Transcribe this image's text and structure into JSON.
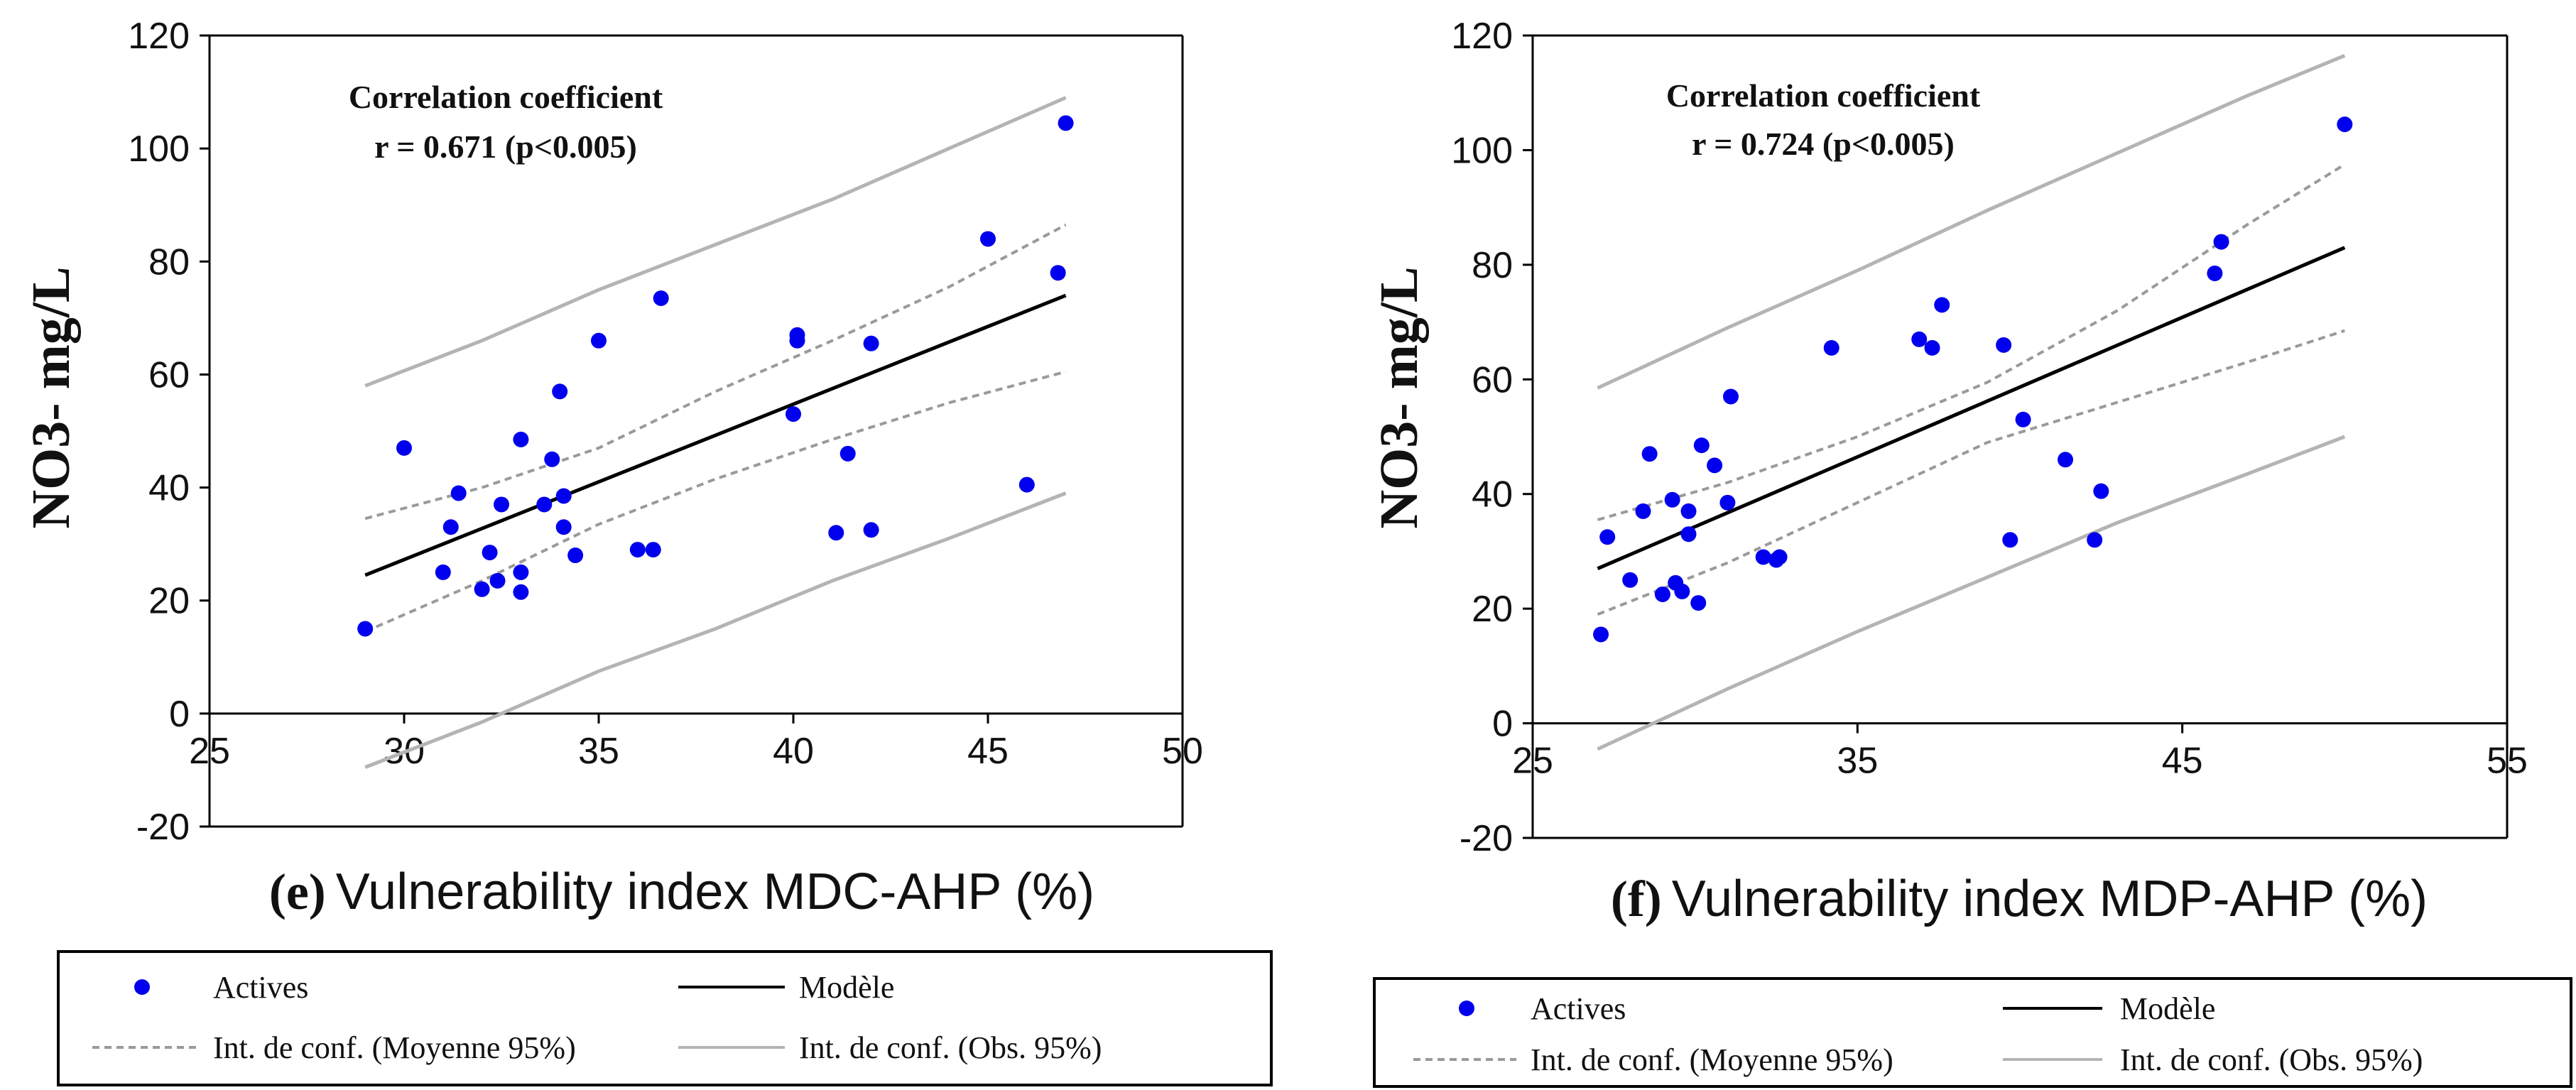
{
  "chart_data": [
    {
      "type": "scatter",
      "panel_label": "(e)",
      "xlabel": "Vulnerability index MDC-AHP (%)",
      "ylabel": "NO3- mg/L",
      "xlim": [
        25,
        50
      ],
      "ylim": [
        -20,
        120
      ],
      "xticks": [
        25,
        30,
        35,
        40,
        45,
        50
      ],
      "yticks": [
        -20,
        0,
        20,
        40,
        60,
        80,
        100,
        120
      ],
      "annotation": [
        "Correlation coefficient",
        "r = 0.671 (p<0.005)"
      ],
      "points": [
        [
          29,
          15
        ],
        [
          30,
          47
        ],
        [
          31,
          25
        ],
        [
          31.2,
          33
        ],
        [
          31.4,
          39
        ],
        [
          32,
          22
        ],
        [
          32.2,
          28.5
        ],
        [
          32.4,
          23.5
        ],
        [
          32.5,
          37
        ],
        [
          33,
          21.5
        ],
        [
          33,
          25
        ],
        [
          33,
          48.5
        ],
        [
          33.6,
          37
        ],
        [
          33.8,
          45
        ],
        [
          34,
          57
        ],
        [
          34.1,
          38.5
        ],
        [
          34.1,
          33
        ],
        [
          34.4,
          28
        ],
        [
          35,
          66
        ],
        [
          36,
          29
        ],
        [
          36.4,
          29
        ],
        [
          36.6,
          73.5
        ],
        [
          40,
          53
        ],
        [
          40.1,
          66
        ],
        [
          40.1,
          67
        ],
        [
          41.1,
          32
        ],
        [
          41.4,
          46
        ],
        [
          42,
          32.5
        ],
        [
          42,
          65.5
        ],
        [
          45,
          84
        ],
        [
          46,
          40.5
        ],
        [
          46.8,
          78
        ],
        [
          47,
          104.5
        ]
      ],
      "model": {
        "x": [
          29,
          47
        ],
        "y": [
          24.5,
          74
        ]
      },
      "conf_mean": {
        "x": [
          29,
          32,
          35,
          38,
          41,
          44,
          47
        ],
        "upper": [
          34.5,
          40,
          47,
          57,
          66,
          75.5,
          86.5
        ],
        "lower": [
          14.5,
          23.5,
          33.5,
          41.5,
          48.5,
          55,
          60.5
        ]
      },
      "conf_obs": {
        "x": [
          29,
          32,
          35,
          38,
          41,
          44,
          47
        ],
        "upper": [
          58,
          66,
          75,
          83,
          91,
          100,
          109
        ],
        "lower": [
          -9.5,
          -1.5,
          7.5,
          15,
          23.5,
          31,
          39
        ]
      },
      "legend": {
        "actives": "Actives",
        "model": "Modèle",
        "conf_mean": "Int. de conf. (Moyenne 95%)",
        "conf_obs": "Int. de conf. (Obs. 95%)"
      }
    },
    {
      "type": "scatter",
      "panel_label": "(f)",
      "xlabel": "Vulnerability index MDP-AHP (%)",
      "ylabel": "NO3- mg/L",
      "xlim": [
        25,
        55
      ],
      "ylim": [
        -20,
        120
      ],
      "xticks": [
        25,
        35,
        45,
        55
      ],
      "yticks": [
        -20,
        0,
        20,
        40,
        60,
        80,
        100,
        120
      ],
      "annotation": [
        "Correlation coefficient",
        "r = 0.724 (p<0.005)"
      ],
      "points": [
        [
          27.1,
          15.5
        ],
        [
          27.3,
          32.5
        ],
        [
          28,
          25
        ],
        [
          28.4,
          37
        ],
        [
          28.6,
          47
        ],
        [
          29,
          22.5
        ],
        [
          29.3,
          39
        ],
        [
          29.4,
          24.5
        ],
        [
          29.6,
          23
        ],
        [
          29.8,
          37
        ],
        [
          29.8,
          33
        ],
        [
          30.1,
          21
        ],
        [
          30.2,
          48.5
        ],
        [
          30.6,
          45
        ],
        [
          31,
          38.5
        ],
        [
          31.1,
          57
        ],
        [
          32.1,
          29
        ],
        [
          32.5,
          28.5
        ],
        [
          32.6,
          29
        ],
        [
          34.2,
          65.5
        ],
        [
          36.9,
          67
        ],
        [
          37.3,
          65.5
        ],
        [
          37.6,
          73
        ],
        [
          39.5,
          66
        ],
        [
          39.7,
          32
        ],
        [
          40.1,
          53
        ],
        [
          41.4,
          46
        ],
        [
          42.3,
          32
        ],
        [
          42.5,
          40.5
        ],
        [
          46,
          78.5
        ],
        [
          46.2,
          84
        ],
        [
          50,
          104.5
        ]
      ],
      "model": {
        "x": [
          27,
          50
        ],
        "y": [
          27,
          83
        ]
      },
      "conf_mean": {
        "x": [
          27,
          31,
          35,
          39,
          43,
          47,
          50
        ],
        "upper": [
          35.5,
          42,
          50,
          59.5,
          72,
          87,
          97.5
        ],
        "lower": [
          19,
          28,
          38.5,
          49,
          56,
          63,
          68.5
        ]
      },
      "conf_obs": {
        "x": [
          27,
          31,
          35,
          39,
          43,
          47,
          50
        ],
        "upper": [
          58.5,
          69,
          79,
          89.5,
          99.5,
          109.5,
          116.5
        ],
        "lower": [
          -4.5,
          6,
          16,
          25.5,
          35,
          43.5,
          50
        ]
      },
      "legend": {
        "actives": "Actives",
        "model": "Modèle",
        "conf_mean": "Int. de conf. (Moyenne 95%)",
        "conf_obs": "Int. de conf. (Obs. 95%)"
      }
    }
  ],
  "colors": {
    "points": "#0000ee",
    "model": "#000000",
    "conf_mean": "#9a9a9a",
    "conf_obs": "#b4b4b4"
  }
}
